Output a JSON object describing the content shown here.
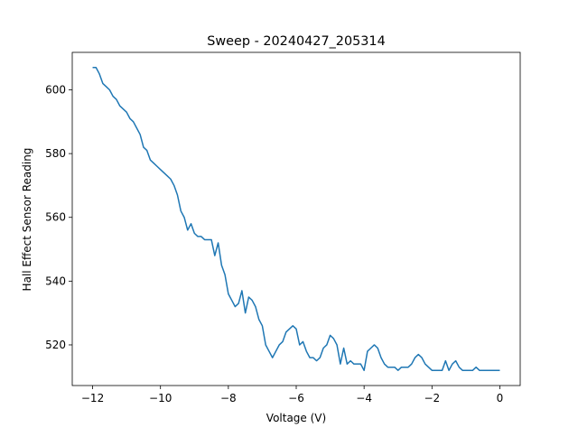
{
  "chart_data": {
    "type": "line",
    "title": "Sweep - 20240427_205314",
    "x_label": "Voltage (V)",
    "y_label": "Hall Effect Sensor Reading",
    "x": [
      -12.0,
      -11.9,
      -11.8,
      -11.7,
      -11.6,
      -11.5,
      -11.4,
      -11.3,
      -11.2,
      -11.1,
      -11.0,
      -10.9,
      -10.8,
      -10.7,
      -10.6,
      -10.5,
      -10.4,
      -10.3,
      -10.2,
      -10.1,
      -10.0,
      -9.9,
      -9.8,
      -9.7,
      -9.6,
      -9.5,
      -9.4,
      -9.3,
      -9.2,
      -9.1,
      -9.0,
      -8.9,
      -8.8,
      -8.7,
      -8.6,
      -8.5,
      -8.4,
      -8.3,
      -8.2,
      -8.1,
      -8.0,
      -7.9,
      -7.8,
      -7.7,
      -7.6,
      -7.5,
      -7.4,
      -7.3,
      -7.2,
      -7.1,
      -7.0,
      -6.9,
      -6.8,
      -6.7,
      -6.6,
      -6.5,
      -6.4,
      -6.3,
      -6.2,
      -6.1,
      -6.0,
      -5.9,
      -5.8,
      -5.7,
      -5.6,
      -5.5,
      -5.4,
      -5.3,
      -5.2,
      -5.1,
      -5.0,
      -4.9,
      -4.8,
      -4.7,
      -4.6,
      -4.5,
      -4.4,
      -4.3,
      -4.2,
      -4.1,
      -4.0,
      -3.9,
      -3.8,
      -3.7,
      -3.6,
      -3.5,
      -3.4,
      -3.3,
      -3.2,
      -3.1,
      -3.0,
      -2.9,
      -2.8,
      -2.7,
      -2.6,
      -2.5,
      -2.4,
      -2.3,
      -2.2,
      -2.1,
      -2.0,
      -1.9,
      -1.8,
      -1.7,
      -1.6,
      -1.5,
      -1.4,
      -1.3,
      -1.2,
      -1.1,
      -1.0,
      -0.9,
      -0.8,
      -0.7,
      -0.6,
      -0.5,
      -0.4,
      -0.3,
      -0.2,
      -0.1,
      0.0
    ],
    "series": [
      {
        "color": "#1f77b4",
        "values": [
          607,
          607,
          605,
          602,
          601,
          600,
          598,
          597,
          595,
          594,
          593,
          591,
          590,
          588,
          586,
          582,
          581,
          578,
          577,
          576,
          575,
          574,
          573,
          572,
          570,
          567,
          562,
          560,
          556,
          558,
          555,
          554,
          554,
          553,
          553,
          553,
          548,
          552,
          545,
          542,
          536,
          534,
          532,
          533,
          537,
          530,
          535,
          534,
          532,
          528,
          526,
          520,
          518,
          516,
          518,
          520,
          521,
          524,
          525,
          526,
          525,
          520,
          521,
          518,
          516,
          516,
          515,
          516,
          519,
          520,
          523,
          522,
          520,
          514,
          519,
          514,
          515,
          514,
          514,
          514,
          512,
          518,
          519,
          520,
          519,
          516,
          514,
          513,
          513,
          513,
          512,
          513,
          513,
          513,
          514,
          516,
          517,
          516,
          514,
          513,
          512,
          512,
          512,
          512,
          515,
          512,
          514,
          515,
          513,
          512,
          512,
          512,
          512,
          513,
          512,
          512,
          512,
          512,
          512,
          512,
          512
        ]
      }
    ],
    "xlim": [
      -12.6,
      0.6
    ],
    "ylim": [
      507.25,
      611.75
    ],
    "xticks": [
      {
        "value": -12,
        "label": "−12"
      },
      {
        "value": -10,
        "label": "−10"
      },
      {
        "value": -8,
        "label": "−8"
      },
      {
        "value": -6,
        "label": "−6"
      },
      {
        "value": -4,
        "label": "−4"
      },
      {
        "value": -2,
        "label": "−2"
      },
      0
    ],
    "yticks": [
      520,
      540,
      560,
      580,
      600
    ]
  }
}
